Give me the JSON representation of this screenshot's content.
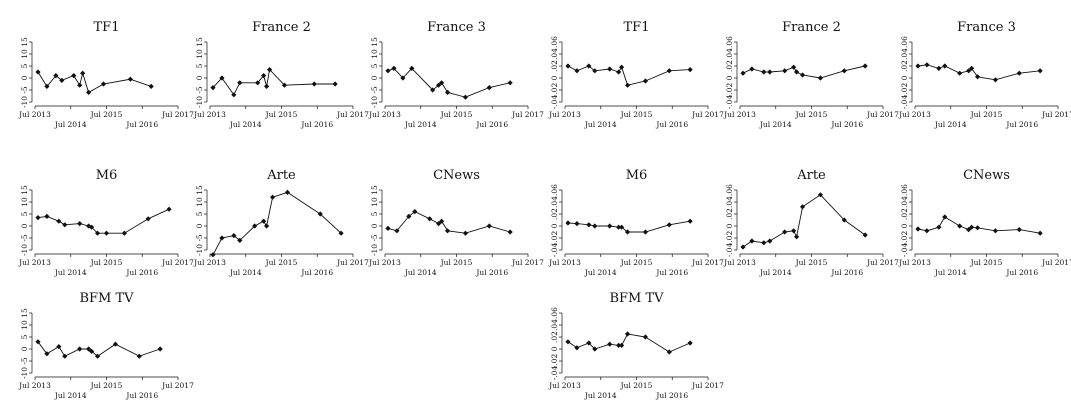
{
  "chart_data": [
    {
      "group": "left",
      "type": "line",
      "x_ticks_top": [
        "Jul 2013",
        "Jul 2015",
        "Jul 2017"
      ],
      "x_ticks_bottom": [
        "Jul 2014",
        "Jul 2016"
      ],
      "y_ticks": [
        "-10",
        "-5",
        "0",
        "5",
        "10",
        "15"
      ],
      "ylim": [
        -10,
        15
      ],
      "xlim": [
        "2013-07",
        "2017-07"
      ],
      "panels": [
        {
          "title": "TF1",
          "x": [
            "2013-08",
            "2013-11",
            "2014-02",
            "2014-04",
            "2014-08",
            "2014-10",
            "2014-11",
            "2015-01",
            "2015-06",
            "2016-03",
            "2016-10"
          ],
          "y": [
            2.5,
            -3.5,
            1,
            -1,
            1,
            -3,
            2,
            -6,
            -2.5,
            -0.5,
            -3.5
          ]
        },
        {
          "title": "France 2",
          "x": [
            "2013-08",
            "2013-11",
            "2014-03",
            "2014-05",
            "2014-11",
            "2015-01",
            "2015-02",
            "2015-03",
            "2015-08",
            "2016-06",
            "2017-01"
          ],
          "y": [
            -4,
            0,
            -7,
            -2,
            -2,
            1,
            -3.5,
            3.5,
            -3,
            -2.5,
            -2.5
          ]
        },
        {
          "title": "France 3",
          "x": [
            "2013-08",
            "2013-10",
            "2014-01",
            "2014-04",
            "2014-11",
            "2015-01",
            "2015-02",
            "2015-04",
            "2015-10",
            "2016-06",
            "2017-01"
          ],
          "y": [
            3,
            4,
            0,
            4,
            -5,
            -3,
            -2,
            -6,
            -8,
            -4,
            -2
          ]
        },
        {
          "title": "M6",
          "x": [
            "2013-08",
            "2013-11",
            "2014-03",
            "2014-05",
            "2014-10",
            "2015-01",
            "2015-02",
            "2015-04",
            "2015-07",
            "2016-01",
            "2016-09",
            "2017-04"
          ],
          "y": [
            3.5,
            4,
            2,
            0.5,
            1,
            0,
            -0.5,
            -3,
            -3,
            -3,
            3,
            7
          ]
        },
        {
          "title": "Arte",
          "x": [
            "2013-08",
            "2013-11",
            "2014-03",
            "2014-05",
            "2014-10",
            "2015-01",
            "2015-02",
            "2015-04",
            "2015-09",
            "2016-08",
            "2017-03"
          ],
          "y": [
            -12,
            -5,
            -4,
            -6,
            0,
            2,
            0,
            12,
            14,
            5,
            -3
          ]
        },
        {
          "title": "CNews",
          "x": [
            "2013-08",
            "2013-11",
            "2014-03",
            "2014-05",
            "2014-10",
            "2015-01",
            "2015-02",
            "2015-04",
            "2015-10",
            "2016-06",
            "2017-01"
          ],
          "y": [
            -1,
            -2,
            4,
            6,
            3,
            1,
            2,
            -2,
            -3,
            0,
            -2.5
          ]
        },
        {
          "title": "BFM TV",
          "x": [
            "2013-08",
            "2013-11",
            "2014-03",
            "2014-05",
            "2014-10",
            "2015-01",
            "2015-02",
            "2015-04",
            "2015-10",
            "2016-06",
            "2017-01"
          ],
          "y": [
            3,
            -2,
            1,
            -3,
            0,
            0,
            -1,
            -3,
            2,
            -3,
            0
          ]
        }
      ]
    },
    {
      "group": "right",
      "type": "line",
      "x_ticks_top": [
        "Jul 2013",
        "Jul 2015",
        "Jul 2017"
      ],
      "x_ticks_bottom": [
        "Jul 2014",
        "Jul 2016"
      ],
      "y_ticks": [
        "-.04",
        "-.02",
        "0",
        ".02",
        ".04",
        ".06"
      ],
      "ylim": [
        -0.04,
        0.06
      ],
      "xlim": [
        "2013-07",
        "2017-07"
      ],
      "panels": [
        {
          "title": "TF1",
          "x": [
            "2013-08",
            "2013-11",
            "2014-03",
            "2014-05",
            "2014-10",
            "2015-01",
            "2015-02",
            "2015-04",
            "2015-10",
            "2016-06",
            "2017-01"
          ],
          "y": [
            0.02,
            0.012,
            0.02,
            0.012,
            0.015,
            0.01,
            0.018,
            -0.012,
            -0.005,
            0.012,
            0.014
          ]
        },
        {
          "title": "France 2",
          "x": [
            "2013-08",
            "2013-11",
            "2014-03",
            "2014-05",
            "2014-10",
            "2015-01",
            "2015-02",
            "2015-04",
            "2015-10",
            "2016-06",
            "2017-01"
          ],
          "y": [
            0.008,
            0.015,
            0.01,
            0.01,
            0.012,
            0.018,
            0.01,
            0.005,
            0,
            0.012,
            0.02
          ]
        },
        {
          "title": "France 3",
          "x": [
            "2013-08",
            "2013-11",
            "2014-03",
            "2014-05",
            "2014-10",
            "2015-01",
            "2015-02",
            "2015-04",
            "2015-10",
            "2016-06",
            "2017-01"
          ],
          "y": [
            0.02,
            0.022,
            0.016,
            0.02,
            0.008,
            0.012,
            0.016,
            0.002,
            -0.003,
            0.008,
            0.012
          ]
        },
        {
          "title": "M6",
          "x": [
            "2013-08",
            "2013-11",
            "2014-03",
            "2014-05",
            "2014-10",
            "2015-01",
            "2015-02",
            "2015-04",
            "2015-10",
            "2016-06",
            "2017-01"
          ],
          "y": [
            0.005,
            0.004,
            0.002,
            0,
            0,
            -0.002,
            -0.002,
            -0.01,
            -0.01,
            0.002,
            0.008
          ]
        },
        {
          "title": "Arte",
          "x": [
            "2013-08",
            "2013-11",
            "2014-03",
            "2014-05",
            "2014-10",
            "2015-01",
            "2015-02",
            "2015-04",
            "2015-10",
            "2016-06",
            "2017-01"
          ],
          "y": [
            -0.035,
            -0.025,
            -0.028,
            -0.025,
            -0.01,
            -0.008,
            -0.018,
            0.032,
            0.052,
            0.01,
            -0.015
          ]
        },
        {
          "title": "CNews",
          "x": [
            "2013-08",
            "2013-11",
            "2014-03",
            "2014-05",
            "2014-10",
            "2015-01",
            "2015-02",
            "2015-04",
            "2015-10",
            "2016-06",
            "2017-01"
          ],
          "y": [
            -0.005,
            -0.008,
            -0.002,
            0.015,
            0,
            -0.006,
            -0.002,
            -0.003,
            -0.008,
            -0.006,
            -0.012
          ]
        },
        {
          "title": "BFM TV",
          "x": [
            "2013-08",
            "2013-11",
            "2014-03",
            "2014-05",
            "2014-10",
            "2015-01",
            "2015-02",
            "2015-04",
            "2015-10",
            "2016-06",
            "2017-01"
          ],
          "y": [
            0.012,
            0.002,
            0.01,
            0,
            0.008,
            0.006,
            0.006,
            0.025,
            0.02,
            -0.005,
            0.01
          ]
        }
      ]
    }
  ]
}
